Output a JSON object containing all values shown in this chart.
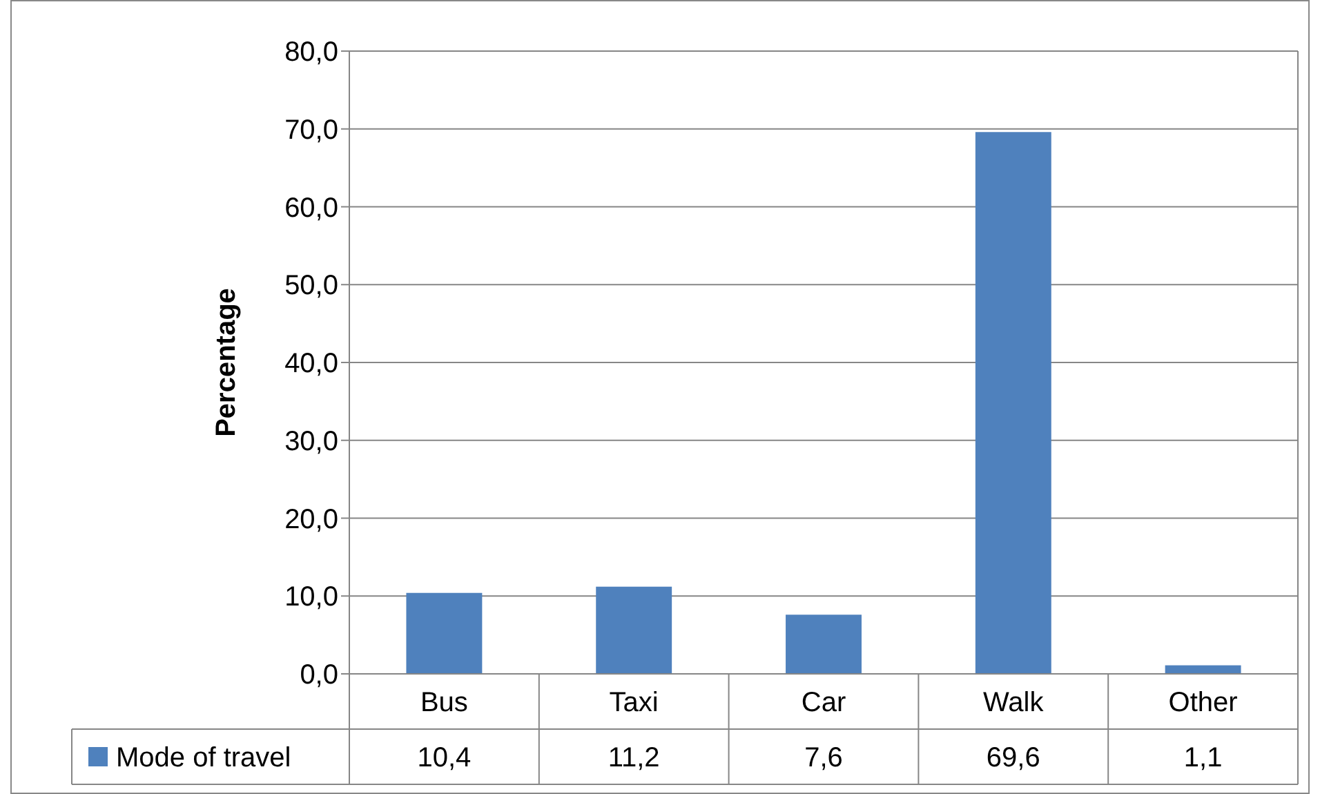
{
  "chart_data": {
    "type": "bar",
    "ylabel": "Percentage",
    "categories": [
      "Bus",
      "Taxi",
      "Car",
      "Walk",
      "Other"
    ],
    "series": [
      {
        "name": "Mode of travel",
        "color": "#4f81bd",
        "values": [
          10.4,
          11.2,
          7.6,
          69.6,
          1.1
        ],
        "value_labels": [
          "10,4",
          "11,2",
          "7,6",
          "69,6",
          "1,1"
        ]
      }
    ],
    "ylim": [
      0,
      80
    ],
    "yticks": [
      {
        "value": 0,
        "label": "0,0"
      },
      {
        "value": 10,
        "label": "10,0"
      },
      {
        "value": 20,
        "label": "20,0"
      },
      {
        "value": 30,
        "label": "30,0"
      },
      {
        "value": 40,
        "label": "40,0"
      },
      {
        "value": 50,
        "label": "50,0"
      },
      {
        "value": 60,
        "label": "60,0"
      },
      {
        "value": 70,
        "label": "70,0"
      },
      {
        "value": 80,
        "label": "80,0"
      }
    ],
    "grid": "y",
    "legend": "bottom"
  }
}
